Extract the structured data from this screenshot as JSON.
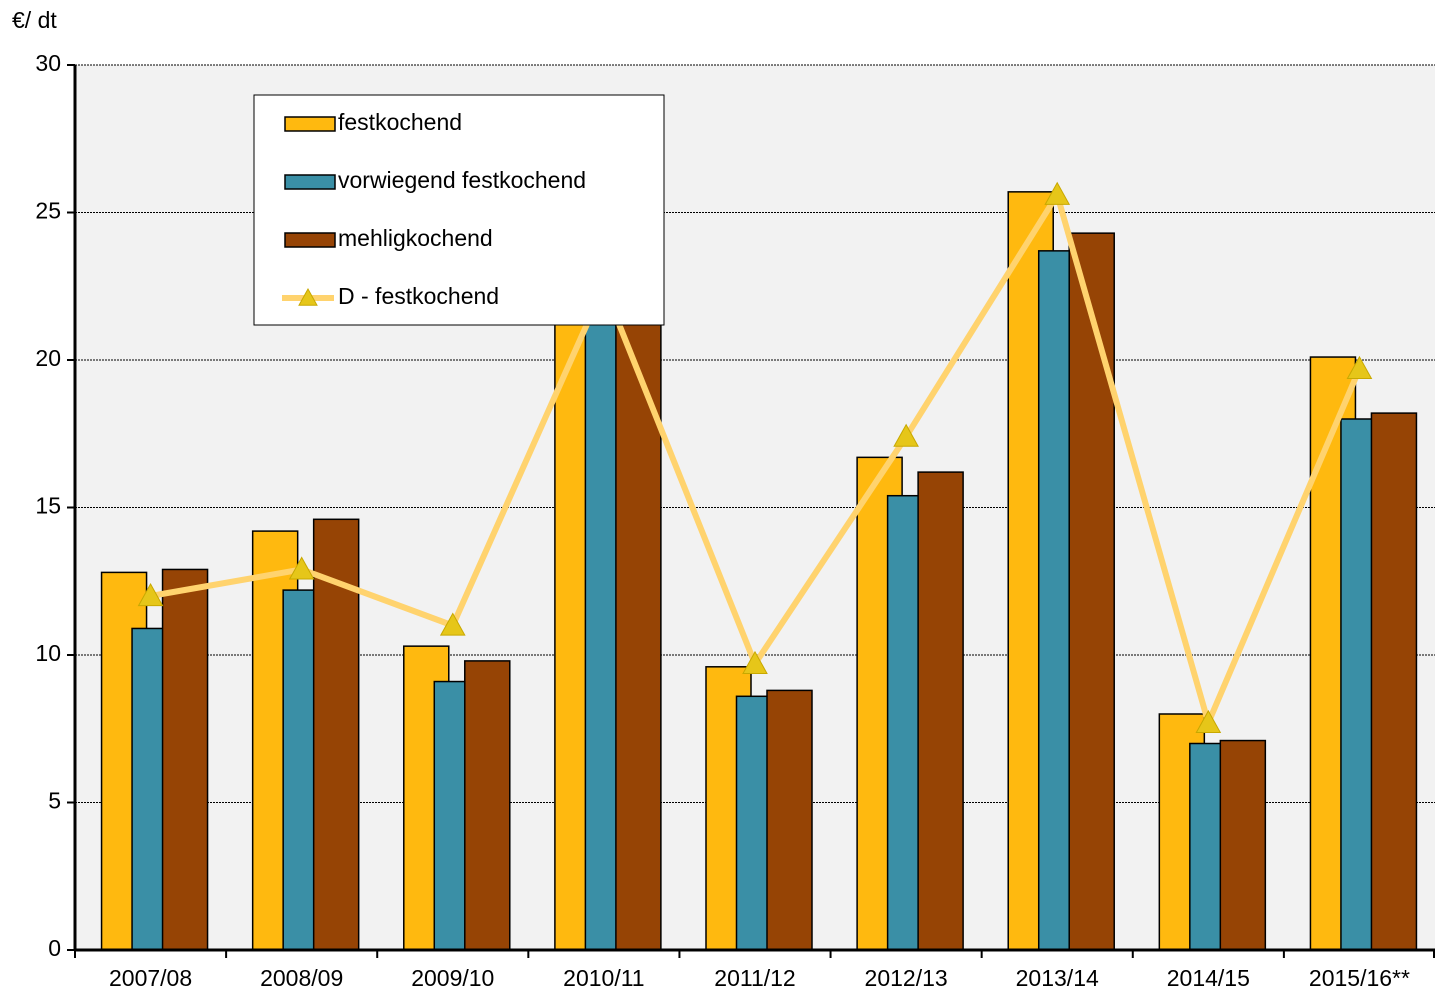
{
  "chart_data": {
    "type": "bar",
    "y_label": "€/ dt",
    "categories": [
      "2007/08",
      "2008/09",
      "2009/10",
      "2010/11",
      "2011/12",
      "2012/13",
      "2013/14",
      "2014/15",
      "2015/16**"
    ],
    "series": [
      {
        "name": "festkochend",
        "color": "#ffb90f",
        "values": [
          12.8,
          14.2,
          10.3,
          22.3,
          9.6,
          16.7,
          25.7,
          8.0,
          20.1
        ]
      },
      {
        "name": "vorwiegend festkochend",
        "color": "#3a8fa6",
        "values": [
          10.9,
          12.2,
          9.1,
          21.5,
          8.6,
          15.4,
          23.7,
          7.0,
          18.0
        ]
      },
      {
        "name": "mehligkochend",
        "color": "#964405",
        "values": [
          12.9,
          14.6,
          9.8,
          21.8,
          8.8,
          16.2,
          24.3,
          7.1,
          18.2
        ]
      },
      {
        "name": "D - festkochend",
        "type": "line",
        "color": "#ffd36e",
        "marker_color": "#e6c619",
        "values": [
          12.0,
          12.9,
          11.0,
          22.5,
          9.7,
          17.4,
          25.6,
          7.7,
          19.7
        ]
      }
    ],
    "ylim": [
      0,
      30
    ],
    "yticks": [
      0,
      5,
      10,
      15,
      20,
      25,
      30
    ],
    "grid": true,
    "legend": "top-left"
  }
}
